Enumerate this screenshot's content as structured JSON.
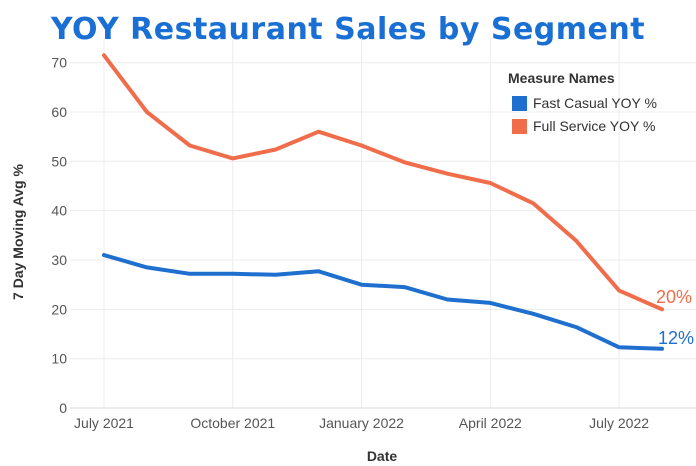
{
  "chart_data": {
    "type": "line",
    "title": "YOY Restaurant Sales by Segment",
    "xlabel": "Date",
    "ylabel": "7 Day Moving Avg %",
    "ylim": [
      0,
      75
    ],
    "yticks": [
      0,
      10,
      20,
      30,
      40,
      50,
      60,
      70
    ],
    "x": [
      "2021-07-01",
      "2021-08-01",
      "2021-09-01",
      "2021-10-01",
      "2021-11-01",
      "2021-12-01",
      "2022-01-01",
      "2022-02-01",
      "2022-03-01",
      "2022-04-01",
      "2022-05-01",
      "2022-06-01",
      "2022-07-01",
      "2022-08-01"
    ],
    "x_index": [
      0,
      1,
      2,
      3,
      4,
      5,
      6,
      7,
      8,
      9,
      10,
      11,
      12,
      13
    ],
    "xticks": [
      {
        "label": "July 2021",
        "index": 0
      },
      {
        "label": "October 2021",
        "index": 3
      },
      {
        "label": "January 2022",
        "index": 6
      },
      {
        "label": "April 2022",
        "index": 9
      },
      {
        "label": "July 2022",
        "index": 12
      }
    ],
    "legend_title": "Measure Names",
    "legend_position": "top-right",
    "series": [
      {
        "name": "Fast Casual YOY %",
        "color": "#1f6fce",
        "values": [
          31,
          28.5,
          27.2,
          27.2,
          27,
          27.7,
          25,
          24.5,
          22,
          21.3,
          19.1,
          16.4,
          12.3,
          12
        ],
        "end_label": "12%"
      },
      {
        "name": "Full Service YOY %",
        "color": "#ef6d4a",
        "values": [
          71.5,
          60,
          53.2,
          50.6,
          52.4,
          56,
          53.2,
          49.8,
          47.5,
          45.6,
          41.5,
          33.9,
          23.8,
          20
        ],
        "end_label": "20%"
      }
    ]
  }
}
